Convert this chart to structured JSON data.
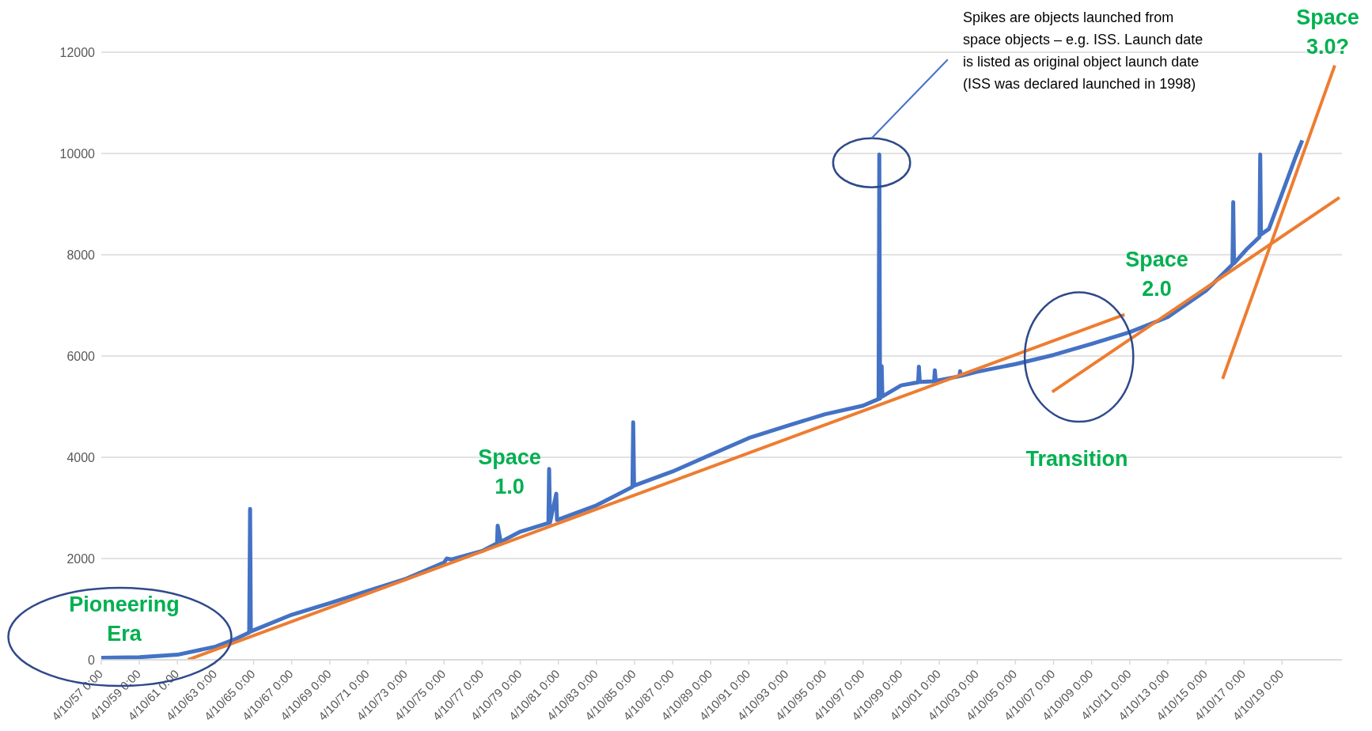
{
  "chart_data": {
    "type": "line",
    "xlim": [
      "1957-04-10",
      "2022-06-01"
    ],
    "xticks": [
      {
        "value": "1957-04-10",
        "label": "4/10/57 0:00"
      },
      {
        "value": "1959-04-10",
        "label": "4/10/59 0:00"
      },
      {
        "value": "1961-04-10",
        "label": "4/10/61 0:00"
      },
      {
        "value": "1963-04-10",
        "label": "4/10/63 0:00"
      },
      {
        "value": "1965-04-10",
        "label": "4/10/65 0:00"
      },
      {
        "value": "1967-04-10",
        "label": "4/10/67 0:00"
      },
      {
        "value": "1969-04-10",
        "label": "4/10/69 0:00"
      },
      {
        "value": "1971-04-10",
        "label": "4/10/71 0:00"
      },
      {
        "value": "1973-04-10",
        "label": "4/10/73 0:00"
      },
      {
        "value": "1975-04-10",
        "label": "4/10/75 0:00"
      },
      {
        "value": "1977-04-10",
        "label": "4/10/77 0:00"
      },
      {
        "value": "1979-04-10",
        "label": "4/10/79 0:00"
      },
      {
        "value": "1981-04-10",
        "label": "4/10/81 0:00"
      },
      {
        "value": "1983-04-10",
        "label": "4/10/83 0:00"
      },
      {
        "value": "1985-04-10",
        "label": "4/10/85 0:00"
      },
      {
        "value": "1987-04-10",
        "label": "4/10/87 0:00"
      },
      {
        "value": "1989-04-10",
        "label": "4/10/89 0:00"
      },
      {
        "value": "1991-04-10",
        "label": "4/10/91 0:00"
      },
      {
        "value": "1993-04-10",
        "label": "4/10/93 0:00"
      },
      {
        "value": "1995-04-10",
        "label": "4/10/95 0:00"
      },
      {
        "value": "1997-04-10",
        "label": "4/10/97 0:00"
      },
      {
        "value": "1999-04-10",
        "label": "4/10/99 0:00"
      },
      {
        "value": "2001-04-10",
        "label": "4/10/01 0:00"
      },
      {
        "value": "2003-04-10",
        "label": "4/10/03 0:00"
      },
      {
        "value": "2005-04-10",
        "label": "4/10/05 0:00"
      },
      {
        "value": "2007-04-10",
        "label": "4/10/07 0:00"
      },
      {
        "value": "2009-04-10",
        "label": "4/10/09 0:00"
      },
      {
        "value": "2011-04-10",
        "label": "4/10/11 0:00"
      },
      {
        "value": "2013-04-10",
        "label": "4/10/13 0:00"
      },
      {
        "value": "2015-04-10",
        "label": "4/10/15 0:00"
      },
      {
        "value": "2017-04-10",
        "label": "4/10/17 0:00"
      },
      {
        "value": "2019-04-10",
        "label": "4/10/19 0:00"
      }
    ],
    "ylim": [
      0,
      12000
    ],
    "yticks": [
      0,
      2000,
      4000,
      6000,
      8000,
      10000,
      12000
    ],
    "grid": "y",
    "legend": false,
    "marker": "none",
    "line_style": "solid",
    "series": [
      {
        "color": "#4472c4",
        "x": [
          "1957-04-10",
          "1959-04-10",
          "1961-04-10",
          "1963-04-10",
          "1964-04-01",
          "1965-01-15",
          "1965-02-01",
          "1965-02-15",
          "1967-04-10",
          "1969-04-10",
          "1971-04-10",
          "1973-04-10",
          "1975-04-10",
          "1975-06-01",
          "1975-09-01",
          "1977-04-10",
          "1978-01-20",
          "1978-02-01",
          "1978-04-01",
          "1979-04-10",
          "1980-10-01",
          "1980-10-15",
          "1980-11-01",
          "1981-03-01",
          "1981-03-15",
          "1983-04-10",
          "1985-02-01",
          "1985-03-01",
          "1985-03-15",
          "1985-04-01",
          "1987-04-10",
          "1989-04-10",
          "1991-04-10",
          "1993-04-10",
          "1995-04-10",
          "1997-04-10",
          "1998-02-01",
          "1998-02-15",
          "1998-03-01",
          "1998-04-01",
          "1998-04-15",
          "1999-04-10",
          "2000-03-01",
          "2000-03-15",
          "2000-04-01",
          "2001-01-01",
          "2001-01-15",
          "2001-02-01",
          "2002-05-01",
          "2002-05-15",
          "2002-06-01",
          "2003-04-10",
          "2005-04-10",
          "2007-04-10",
          "2009-04-10",
          "2011-04-10",
          "2013-04-10",
          "2015-04-10",
          "2016-09-01",
          "2016-09-15",
          "2016-10-01",
          "2017-06-01",
          "2018-02-01",
          "2018-02-15",
          "2018-03-01",
          "2018-08-01",
          "2019-04-10",
          "2020-01-01",
          "2020-05-01"
        ],
        "values": [
          40,
          50,
          100,
          260,
          400,
          540,
          2980,
          560,
          890,
          1120,
          1360,
          1600,
          1920,
          2000,
          1980,
          2150,
          2300,
          2650,
          2330,
          2530,
          2700,
          3770,
          2710,
          3280,
          2760,
          3050,
          3400,
          3420,
          4690,
          3440,
          3720,
          4050,
          4380,
          4620,
          4850,
          5020,
          5150,
          9980,
          5160,
          5800,
          5200,
          5420,
          5480,
          5790,
          5490,
          5500,
          5720,
          5510,
          5600,
          5700,
          5610,
          5690,
          5840,
          6020,
          6240,
          6470,
          6770,
          7290,
          7810,
          9040,
          7830,
          8110,
          8350,
          9980,
          8400,
          8510,
          9210,
          9950,
          10260
        ]
      },
      {
        "color": "#ed7d31",
        "x": [
          "1961-10-29",
          "2011-01-01"
        ],
        "values": [
          0,
          6820
        ]
      },
      {
        "color": "#ed7d31",
        "x": [
          "2007-03-15",
          "2022-04-15"
        ],
        "values": [
          5290,
          9130
        ]
      },
      {
        "color": "#ed7d31",
        "x": [
          "2016-02-25",
          "2022-01-15"
        ],
        "values": [
          5550,
          11740
        ]
      }
    ],
    "annotations": [
      "Spikes are objects launched from space objects – e.g. ISS. Launch date is listed as original object launch date (ISS was declared launched in 1998)",
      "Pioneering Era",
      "Space 1.0",
      "Transition",
      "Space 2.0",
      "Space 3.0?"
    ]
  }
}
